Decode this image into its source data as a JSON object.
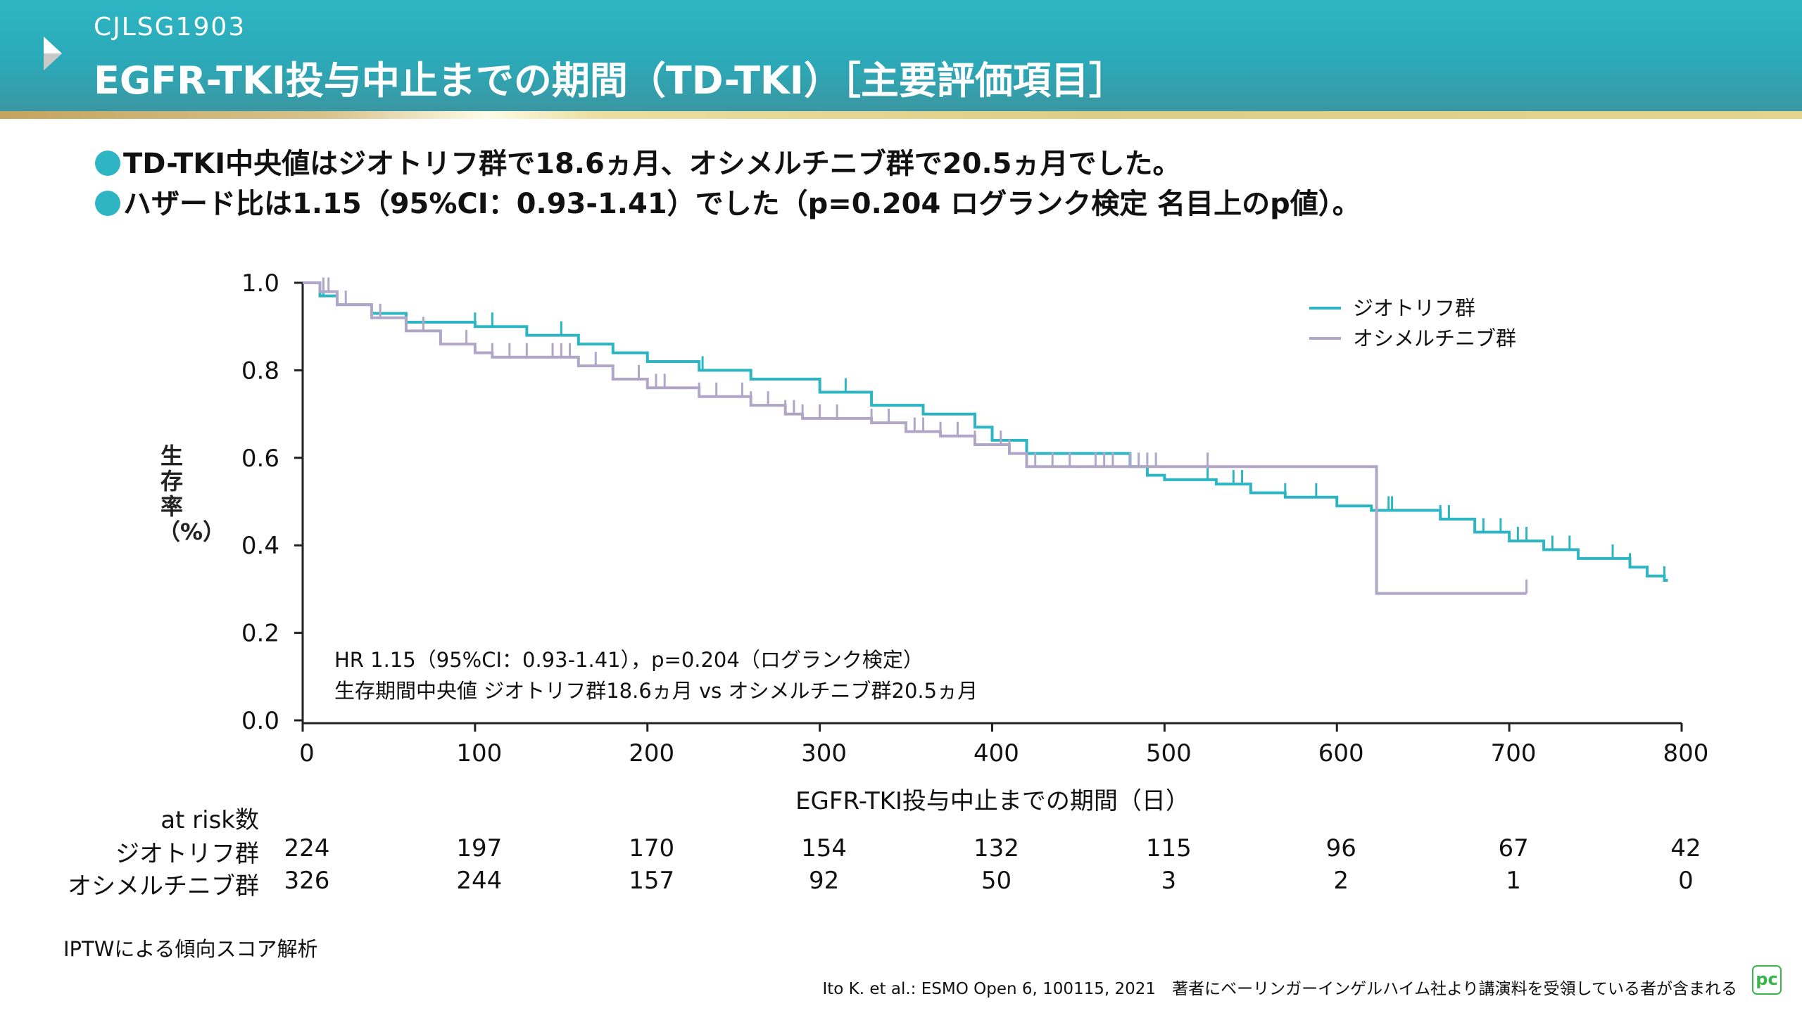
{
  "header": {
    "study": "CJLSG1903",
    "title": "EGFR-TKI投与中止までの期間（TD-TKI）［主要評価項目］",
    "accent": "#2db5c3"
  },
  "bullets": [
    "TD-TKI中央値はジオトリフ群で18.6ヵ月、オシメルチニブ群で20.5ヵ月でした。",
    "ハザード比は1.15（95%CI：0.93-1.41）でした（p=0.204 ログランク検定 名目上のp値）。"
  ],
  "chart_data": {
    "type": "line",
    "subtype": "kaplan-meier",
    "xlabel": "EGFR-TKI投与中止までの期間（日）",
    "ylabel": "生存率（%）",
    "xlim": [
      0,
      800
    ],
    "ylim": [
      0,
      1.0
    ],
    "xticks": [
      "0",
      "100",
      "200",
      "300",
      "400",
      "500",
      "600",
      "700",
      "800"
    ],
    "yticks": [
      "0.0",
      "0.2",
      "0.4",
      "0.6",
      "0.8",
      "1.0"
    ],
    "legend_position": "top-right",
    "grid": false,
    "annotations": [
      "HR 1.15（95%CI：0.93-1.41），p=0.204（ログランク検定）",
      "生存期間中央値 ジオトリフ群18.6ヵ月 vs オシメルチニブ群20.5ヵ月"
    ],
    "series": [
      {
        "name": "ジオトリフ群",
        "color": "#2db5c3",
        "steps": [
          [
            0,
            1.0
          ],
          [
            10,
            0.97
          ],
          [
            20,
            0.95
          ],
          [
            40,
            0.93
          ],
          [
            60,
            0.91
          ],
          [
            100,
            0.9
          ],
          [
            130,
            0.88
          ],
          [
            160,
            0.86
          ],
          [
            180,
            0.84
          ],
          [
            200,
            0.82
          ],
          [
            230,
            0.8
          ],
          [
            260,
            0.78
          ],
          [
            300,
            0.75
          ],
          [
            330,
            0.72
          ],
          [
            360,
            0.7
          ],
          [
            390,
            0.67
          ],
          [
            400,
            0.64
          ],
          [
            420,
            0.61
          ],
          [
            480,
            0.58
          ],
          [
            490,
            0.56
          ],
          [
            500,
            0.55
          ],
          [
            530,
            0.54
          ],
          [
            550,
            0.52
          ],
          [
            570,
            0.51
          ],
          [
            600,
            0.49
          ],
          [
            620,
            0.48
          ],
          [
            660,
            0.46
          ],
          [
            680,
            0.43
          ],
          [
            700,
            0.41
          ],
          [
            720,
            0.39
          ],
          [
            740,
            0.37
          ],
          [
            770,
            0.35
          ],
          [
            780,
            0.33
          ],
          [
            790,
            0.32
          ]
        ],
        "end": 792,
        "censored": [
          12,
          100,
          110,
          150,
          232,
          315,
          390,
          400,
          525,
          540,
          545,
          570,
          588,
          630,
          632,
          660,
          665,
          685,
          695,
          705,
          710,
          725,
          735,
          760,
          770,
          790
        ]
      },
      {
        "name": "オシメルチニブ群",
        "color": "#b0a6c8",
        "steps": [
          [
            0,
            1.0
          ],
          [
            10,
            0.98
          ],
          [
            20,
            0.95
          ],
          [
            40,
            0.92
          ],
          [
            60,
            0.89
          ],
          [
            80,
            0.86
          ],
          [
            100,
            0.84
          ],
          [
            110,
            0.83
          ],
          [
            160,
            0.81
          ],
          [
            180,
            0.78
          ],
          [
            200,
            0.76
          ],
          [
            230,
            0.74
          ],
          [
            260,
            0.72
          ],
          [
            280,
            0.7
          ],
          [
            290,
            0.69
          ],
          [
            330,
            0.68
          ],
          [
            350,
            0.66
          ],
          [
            370,
            0.65
          ],
          [
            390,
            0.63
          ],
          [
            410,
            0.61
          ],
          [
            420,
            0.58
          ],
          [
            623,
            0.29
          ]
        ],
        "end": 710,
        "censored": [
          12,
          15,
          25,
          45,
          60,
          70,
          80,
          95,
          110,
          120,
          130,
          145,
          150,
          155,
          170,
          180,
          195,
          205,
          210,
          230,
          240,
          255,
          260,
          270,
          280,
          285,
          290,
          300,
          310,
          330,
          340,
          355,
          360,
          370,
          380,
          390,
          405,
          410,
          425,
          435,
          445,
          460,
          465,
          470,
          480,
          485,
          490,
          495,
          525,
          710
        ]
      }
    ]
  },
  "at_risk": {
    "label": "at risk数",
    "rows": [
      {
        "name": "ジオトリフ群",
        "values": [
          "224",
          "197",
          "170",
          "154",
          "132",
          "115",
          "96",
          "67",
          "42"
        ]
      },
      {
        "name": "オシメルチニブ群",
        "values": [
          "326",
          "244",
          "157",
          "92",
          "50",
          "3",
          "2",
          "1",
          "0"
        ]
      }
    ]
  },
  "footnote": "IPTWによる傾向スコア解析",
  "citation": "Ito K. et al.: ESMO Open  6, 100115, 2021　著者にベーリンガーインゲルハイム社より講演料を受領している者が含まれる",
  "logo": "PC"
}
